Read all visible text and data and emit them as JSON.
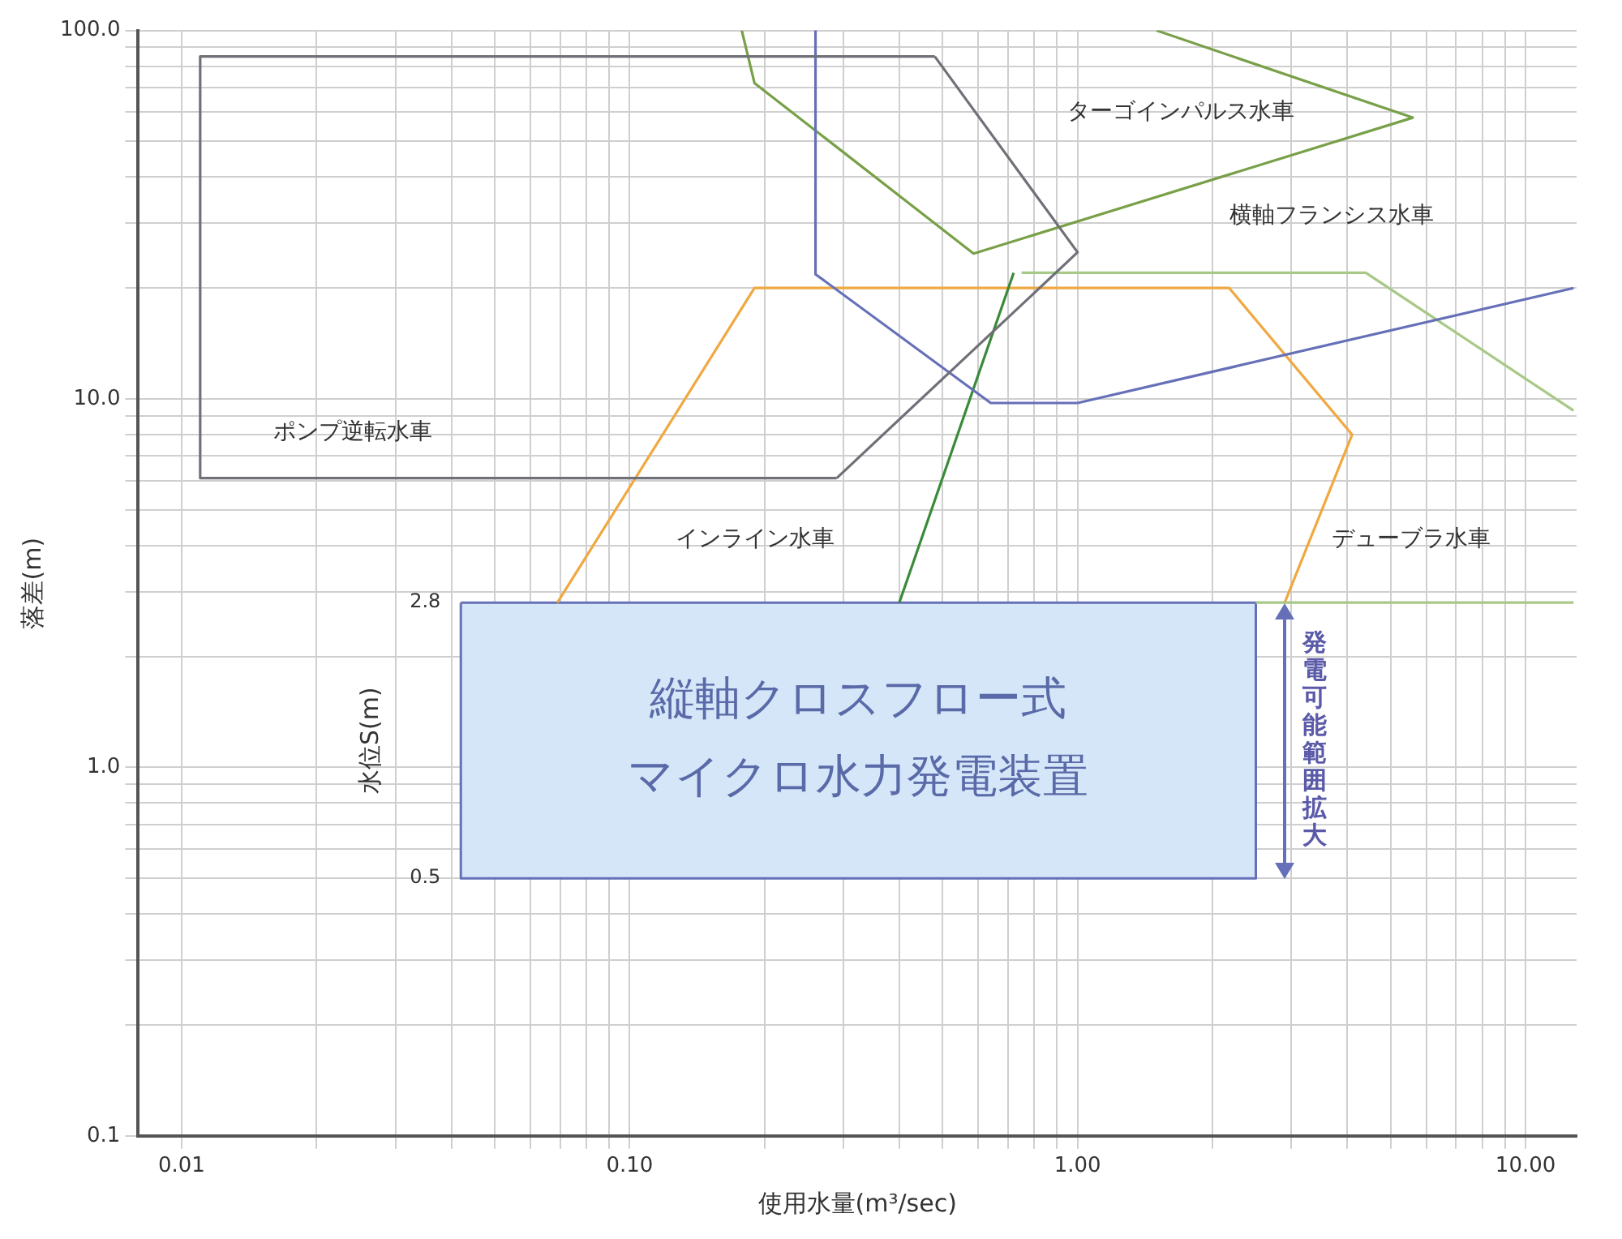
{
  "chart_data": {
    "type": "line",
    "xlabel": "使用水量(m³/sec)",
    "ylabel": "落差(m)",
    "log": "xy",
    "grid": true,
    "legend": false,
    "marker": "none",
    "line_style": "solid",
    "xlim": [
      0.008,
      13
    ],
    "ylim": [
      0.1,
      100
    ],
    "xticks": [
      {
        "value": 0.01,
        "label": "0.01"
      },
      {
        "value": 0.02,
        "label": null
      },
      {
        "value": 0.03,
        "label": null
      },
      {
        "value": 0.04,
        "label": null
      },
      {
        "value": 0.05,
        "label": null
      },
      {
        "value": 0.06,
        "label": null
      },
      {
        "value": 0.07,
        "label": null
      },
      {
        "value": 0.08,
        "label": null
      },
      {
        "value": 0.09,
        "label": null
      },
      {
        "value": 0.1,
        "label": "0.10"
      },
      {
        "value": 0.2,
        "label": null
      },
      {
        "value": 0.3,
        "label": null
      },
      {
        "value": 0.4,
        "label": null
      },
      {
        "value": 0.5,
        "label": null
      },
      {
        "value": 0.6,
        "label": null
      },
      {
        "value": 0.7,
        "label": null
      },
      {
        "value": 0.8,
        "label": null
      },
      {
        "value": 0.9,
        "label": null
      },
      {
        "value": 1,
        "label": "1.00"
      },
      {
        "value": 2,
        "label": null
      },
      {
        "value": 3,
        "label": null
      },
      {
        "value": 4,
        "label": null
      },
      {
        "value": 5,
        "label": null
      },
      {
        "value": 6,
        "label": null
      },
      {
        "value": 7,
        "label": null
      },
      {
        "value": 8,
        "label": null
      },
      {
        "value": 9,
        "label": null
      },
      {
        "value": 10,
        "label": "10.00"
      }
    ],
    "yticks": [
      {
        "value": 0.1,
        "label": "0.1"
      },
      {
        "value": 0.2,
        "label": null
      },
      {
        "value": 0.3,
        "label": null
      },
      {
        "value": 0.4,
        "label": null
      },
      {
        "value": 0.5,
        "label": null
      },
      {
        "value": 0.6,
        "label": null
      },
      {
        "value": 0.7,
        "label": null
      },
      {
        "value": 0.8,
        "label": null
      },
      {
        "value": 0.9,
        "label": null
      },
      {
        "value": 1,
        "label": "1.0"
      },
      {
        "value": 2,
        "label": null
      },
      {
        "value": 3,
        "label": null
      },
      {
        "value": 4,
        "label": null
      },
      {
        "value": 5,
        "label": null
      },
      {
        "value": 6,
        "label": null
      },
      {
        "value": 7,
        "label": null
      },
      {
        "value": 8,
        "label": null
      },
      {
        "value": 9,
        "label": null
      },
      {
        "value": 10,
        "label": "10.0"
      },
      {
        "value": 20,
        "label": null
      },
      {
        "value": 30,
        "label": null
      },
      {
        "value": 40,
        "label": null
      },
      {
        "value": 50,
        "label": null
      },
      {
        "value": 60,
        "label": null
      },
      {
        "value": 70,
        "label": null
      },
      {
        "value": 80,
        "label": null
      },
      {
        "value": 90,
        "label": null
      },
      {
        "value": 100,
        "label": "100.0"
      }
    ],
    "series": [
      {
        "color": "#707078",
        "x": [
          0.48,
          0.011,
          0.011,
          0.29
        ],
        "values": [
          85,
          85,
          6.1,
          6.1
        ]
      },
      {
        "color": "#707078",
        "x": [
          0.29,
          1.0,
          0.48
        ],
        "values": [
          6.1,
          25,
          85
        ]
      },
      {
        "color": "#6670b8",
        "x": [
          0.26,
          0.26,
          0.64,
          1.0,
          12.8
        ],
        "values": [
          100,
          21.8,
          9.75,
          9.75,
          20
        ]
      },
      {
        "color": "#78a048",
        "x": [
          0.178,
          0.19,
          0.586,
          5.6,
          1.5
        ],
        "values": [
          100,
          72,
          24.8,
          58,
          100
        ]
      },
      {
        "color": "#3a8a3a",
        "x": [
          0.4,
          0.72
        ],
        "values": [
          2.8,
          22
        ]
      },
      {
        "color": "#a8c888",
        "x": [
          0.75,
          4.4,
          12.8
        ],
        "values": [
          22,
          22,
          9.3
        ]
      },
      {
        "color": "#a8c888",
        "x": [
          2.5,
          12.8
        ],
        "values": [
          2.8,
          2.8
        ]
      },
      {
        "color": "#f0a840",
        "x": [
          0.069,
          0.19,
          2.18,
          4.1,
          2.9
        ],
        "values": [
          2.8,
          20,
          20,
          8.0,
          2.8
        ]
      },
      {
        "type": "area",
        "color": "#6670b8",
        "x": [
          0.042,
          2.5,
          2.5,
          0.042,
          0.042
        ],
        "values": [
          2.8,
          2.8,
          0.5,
          0.5,
          2.8
        ]
      }
    ],
    "annotations": [
      "ターゴインパルス水車",
      "横軸フランシス水車",
      "ポンプ逆転水車",
      "インライン水車",
      "デューブラ水車",
      "縦軸クロスフロー式",
      "マイクロ水力発電装置",
      "2.8",
      "0.5",
      "水位S(m)",
      "発電可能範囲拡大"
    ]
  }
}
